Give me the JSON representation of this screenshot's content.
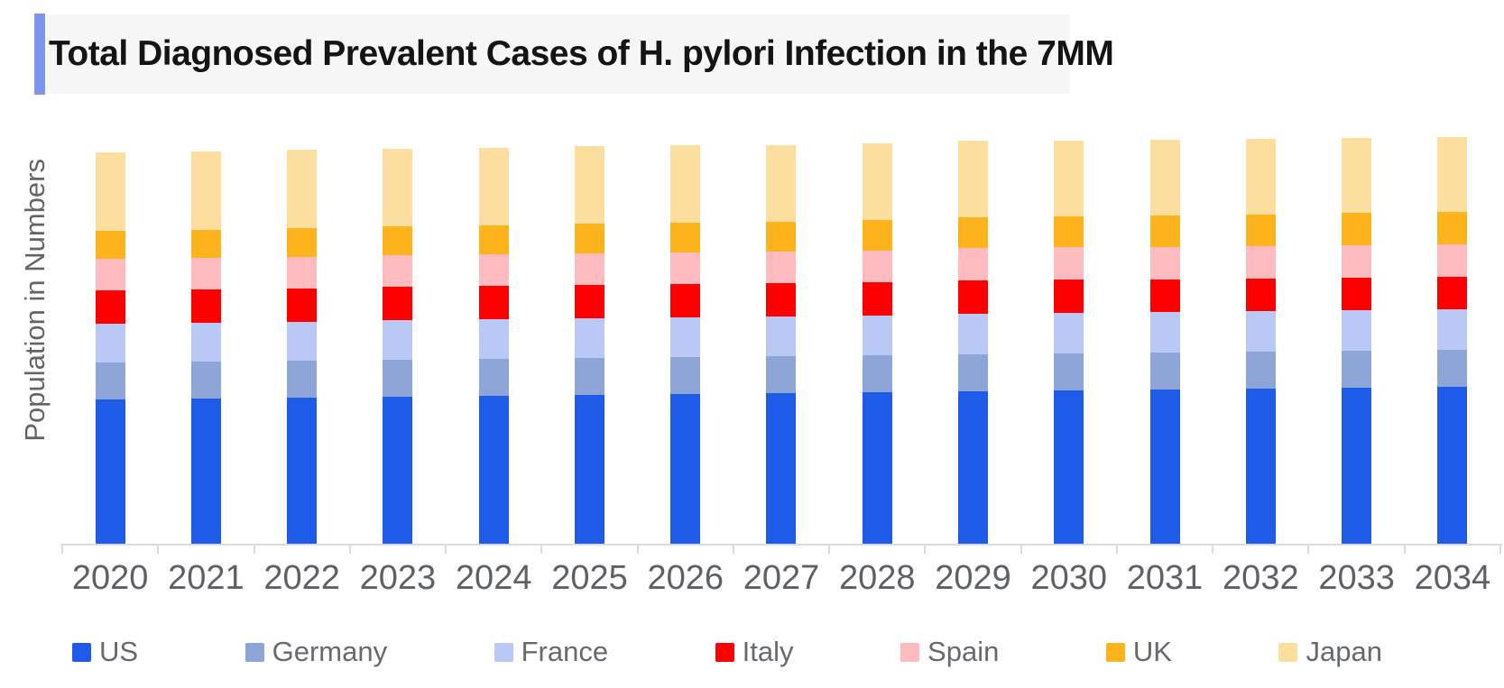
{
  "title": {
    "text": "Total Diagnosed Prevalent Cases of H. pylori Infection in the 7MM"
  },
  "colors": {
    "accent_bar": "#7D95EC",
    "title_panel_bg": "#F6F6F6",
    "axis_line": "#DBDBDB",
    "x_label_text": "#5D6165",
    "y_label_text": "#646464",
    "legend_text": "#66696E"
  },
  "chart_data": {
    "type": "bar",
    "stacked": true,
    "title": "Total Diagnosed Prevalent Cases of H. pylori Infection in the 7MM",
    "xlabel": "",
    "ylabel": "Population in Numbers",
    "grid": false,
    "y_axis_ticks_visible": false,
    "value_units": "relative (no numeric scale shown on axis; values estimated from bar pixel heights)",
    "legend_position": "bottom",
    "categories": [
      "2020",
      "2021",
      "2022",
      "2023",
      "2024",
      "2025",
      "2026",
      "2027",
      "2028",
      "2029",
      "2030",
      "2031",
      "2032",
      "2033",
      "2034"
    ],
    "series": [
      {
        "name": "US",
        "color": "#1F5BE9",
        "values": [
          160,
          161,
          162,
          163,
          164,
          165,
          166,
          167,
          168,
          169,
          170,
          171,
          172,
          173,
          174
        ]
      },
      {
        "name": "Germany",
        "color": "#8DA6D7",
        "values": [
          41,
          41,
          41,
          41,
          41,
          41,
          41,
          41,
          41,
          41,
          41,
          41,
          41,
          41,
          41
        ]
      },
      {
        "name": "France",
        "color": "#B9C8F5",
        "values": [
          43,
          43,
          43,
          44,
          44,
          44,
          44,
          44,
          44,
          45,
          45,
          45,
          45,
          45,
          45
        ]
      },
      {
        "name": "Italy",
        "color": "#FF0000",
        "values": [
          37,
          37,
          37,
          37,
          37,
          37,
          37,
          37,
          37,
          37,
          37,
          36,
          36,
          36,
          36
        ]
      },
      {
        "name": "Spain",
        "color": "#FFBCC0",
        "values": [
          35,
          35,
          35,
          35,
          35,
          35,
          35,
          35,
          35,
          36,
          36,
          36,
          36,
          36,
          36
        ]
      },
      {
        "name": "UK",
        "color": "#FDB31C",
        "values": [
          31,
          31,
          32,
          32,
          32,
          33,
          33,
          33,
          34,
          34,
          34,
          35,
          35,
          36,
          36
        ]
      },
      {
        "name": "Japan",
        "color": "#FCDF9F",
        "values": [
          87,
          87,
          87,
          86,
          86,
          86,
          86,
          85,
          85,
          85,
          84,
          84,
          84,
          83,
          83
        ]
      }
    ]
  }
}
